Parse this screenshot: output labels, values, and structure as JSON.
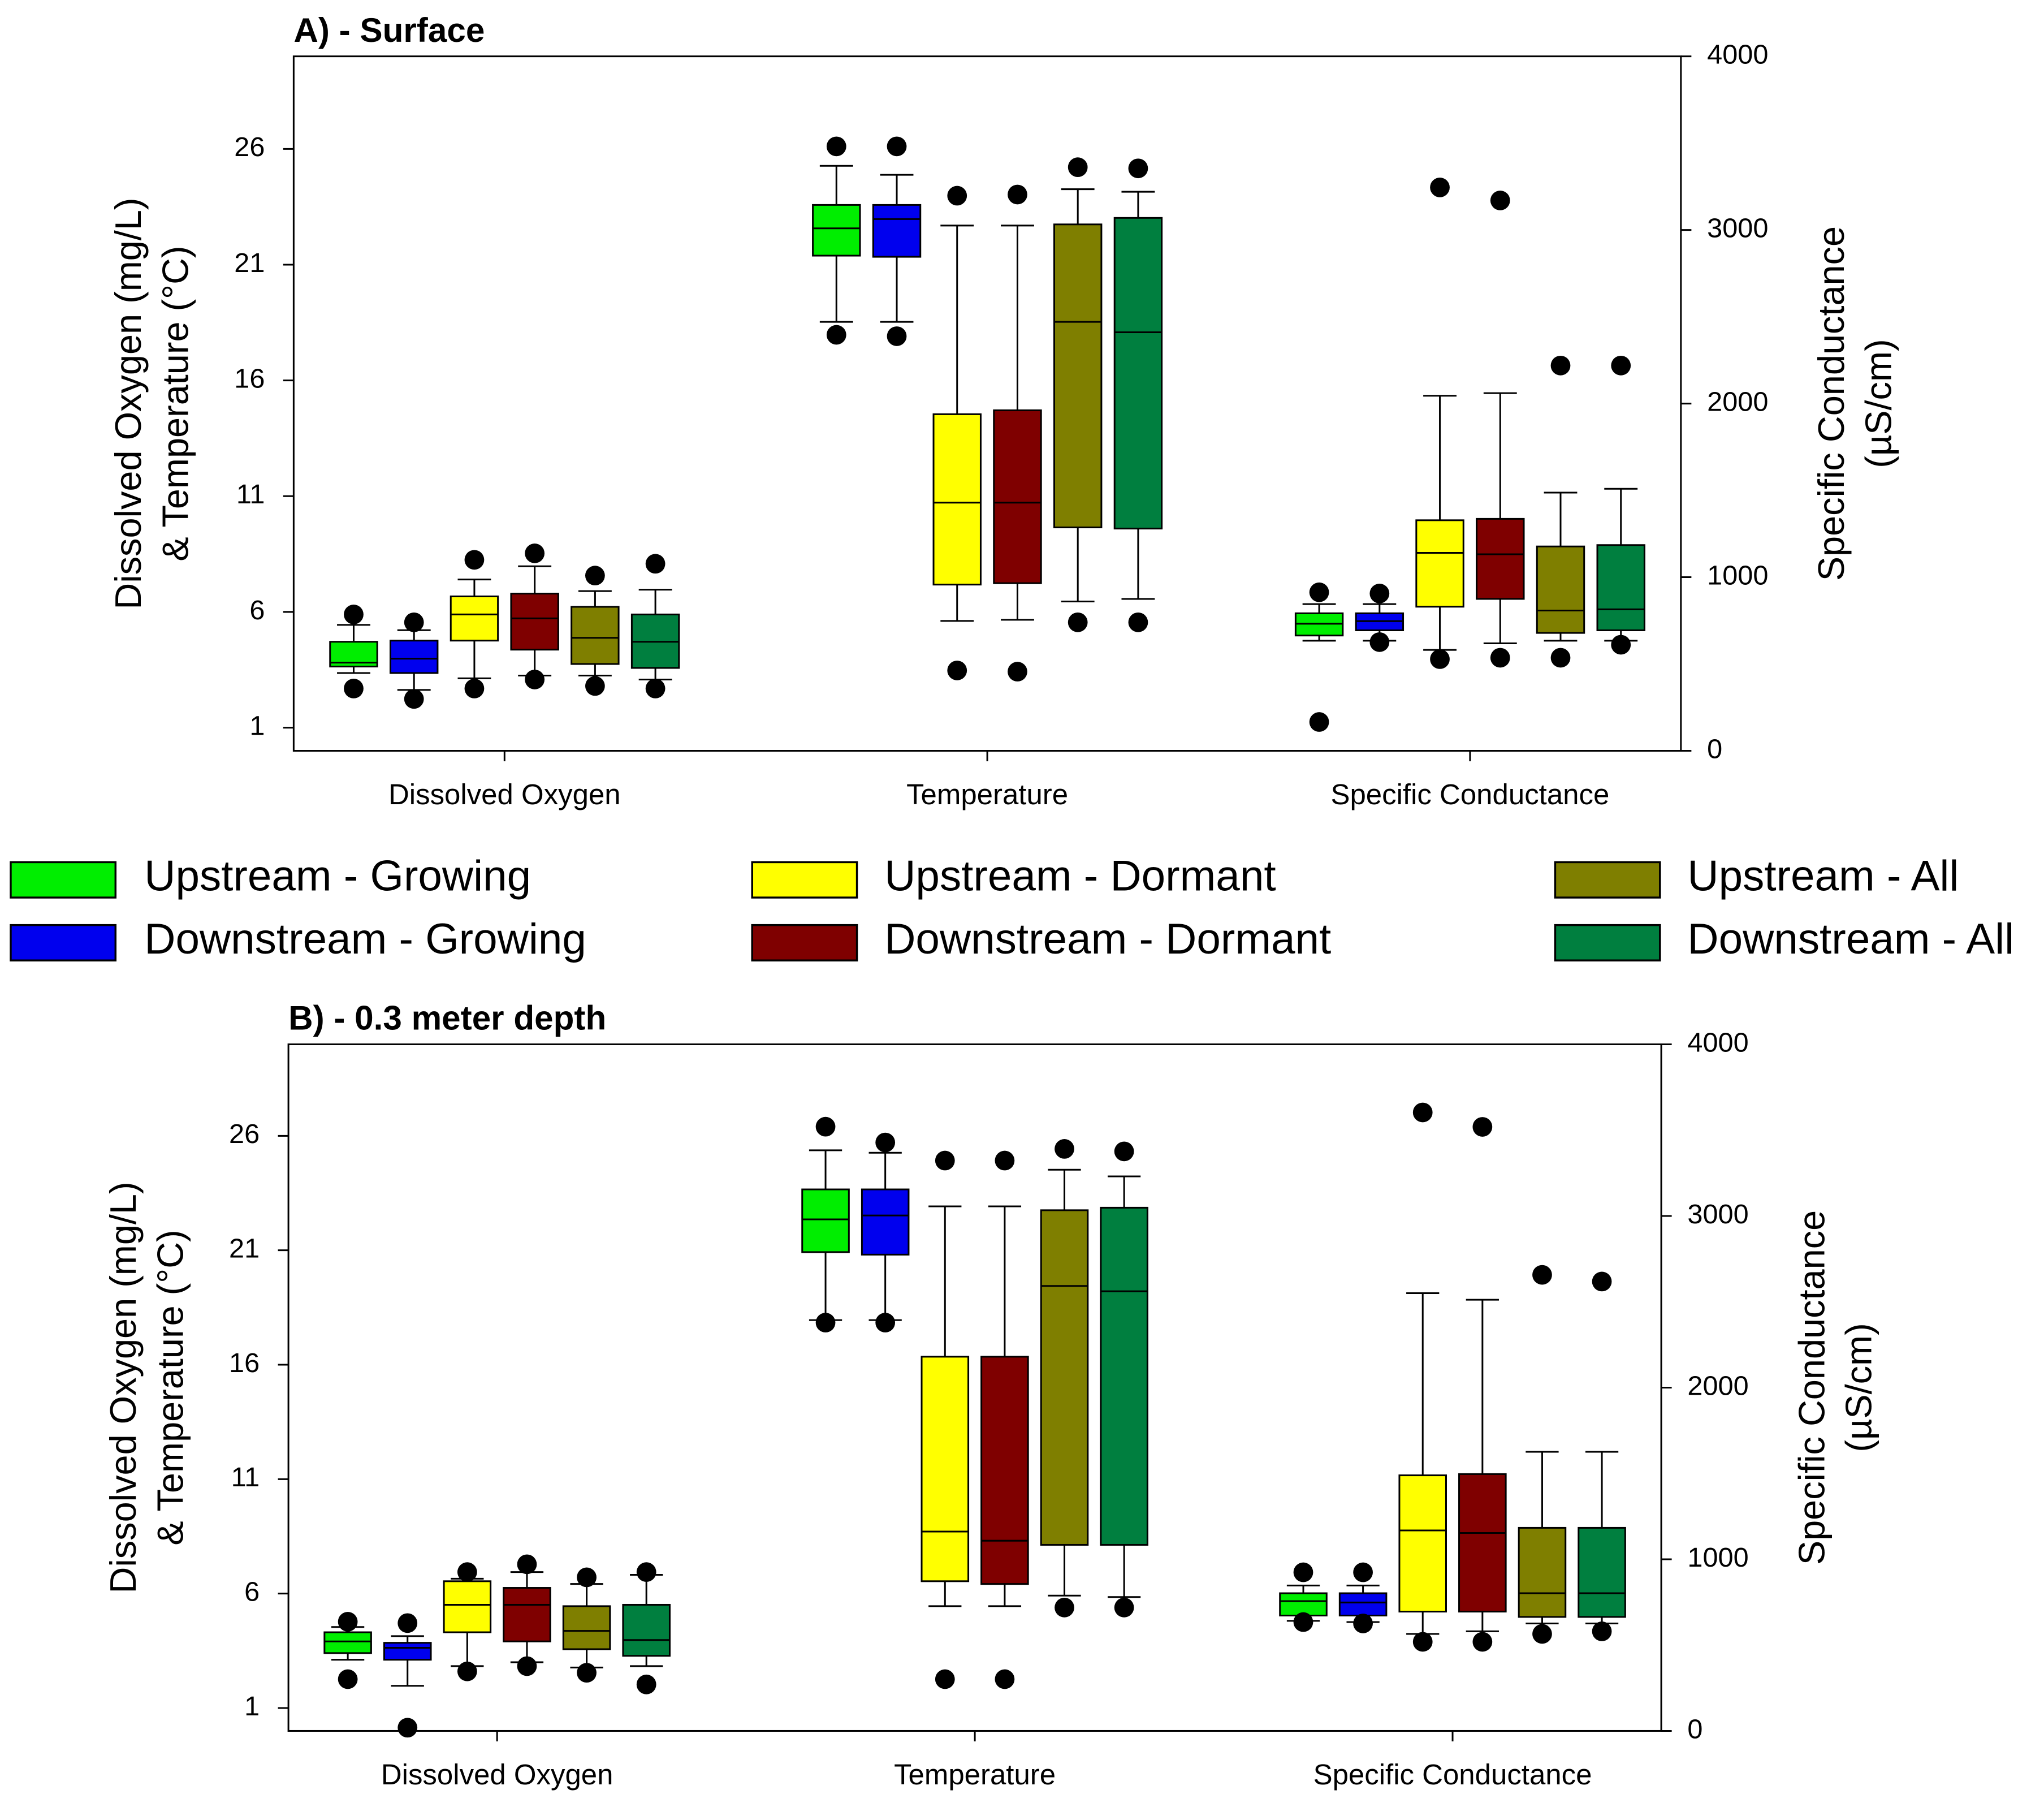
{
  "chart_data": [
    {
      "type": "box",
      "title": "A) - Surface",
      "ylabel": [
        "Dissolved Oxygen (mg/L)",
        "& Temperature (°C)"
      ],
      "y2label": [
        "Specific Conductance",
        "(µS/cm)"
      ],
      "categories": [
        "Dissolved Oxygen",
        "Temperature",
        "Specific Conductance"
      ],
      "category_axes": [
        "y",
        "y",
        "y2"
      ],
      "ylim": [
        0,
        30
      ],
      "yticks": [
        1,
        6,
        11,
        16,
        21,
        26
      ],
      "y2lim": [
        0,
        4000
      ],
      "y2ticks": [
        0,
        1000,
        2000,
        3000,
        4000
      ],
      "series": [
        {
          "name": "Upstream - Growing",
          "color": "#00ee00",
          "values": [
            {
              "low": 3.36,
              "q1": 3.64,
              "median": 3.81,
              "q3": 4.71,
              "high": 5.44,
              "outliers": [
                2.69,
                5.89
              ]
            },
            {
              "low": 18.53,
              "q1": 21.39,
              "median": 22.57,
              "q3": 23.58,
              "high": 25.27,
              "outliers": [
                17.97,
                26.11
              ]
            },
            {
              "low": 634,
              "q1": 664,
              "median": 732,
              "q3": 792,
              "high": 845,
              "outliers": [
                166,
                913
              ]
            }
          ]
        },
        {
          "name": "Downstream - Growing",
          "color": "#0000ee",
          "values": [
            {
              "low": 2.63,
              "q1": 3.36,
              "median": 3.98,
              "q3": 4.76,
              "high": 5.21,
              "outliers": [
                2.24,
                5.55
              ]
            },
            {
              "low": 18.53,
              "q1": 21.34,
              "median": 22.97,
              "q3": 23.58,
              "high": 24.88,
              "outliers": [
                17.91,
                26.11
              ]
            },
            {
              "low": 634,
              "q1": 694,
              "median": 747,
              "q3": 792,
              "high": 845,
              "outliers": [
                626,
                906
              ]
            }
          ]
        },
        {
          "name": "Upstream - Dormant",
          "color": "#ffff00",
          "values": [
            {
              "low": 3.13,
              "q1": 4.76,
              "median": 5.89,
              "q3": 6.67,
              "high": 7.4,
              "outliers": [
                2.69,
                8.25
              ]
            },
            {
              "low": 5.61,
              "q1": 7.18,
              "median": 10.72,
              "q3": 14.54,
              "high": 22.69,
              "outliers": [
                3.47,
                23.98
              ]
            },
            {
              "low": 581,
              "q1": 830,
              "median": 1140,
              "q3": 1328,
              "high": 2045,
              "outliers": [
                528,
                3245
              ]
            }
          ]
        },
        {
          "name": "Downstream - Dormant",
          "color": "#7f0000",
          "values": [
            {
              "low": 3.25,
              "q1": 4.37,
              "median": 5.72,
              "q3": 6.79,
              "high": 7.97,
              "outliers": [
                3.08,
                8.53
              ]
            },
            {
              "low": 5.66,
              "q1": 7.24,
              "median": 10.72,
              "q3": 14.71,
              "high": 22.69,
              "outliers": [
                3.42,
                24.03
              ]
            },
            {
              "low": 619,
              "q1": 875,
              "median": 1132,
              "q3": 1336,
              "high": 2060,
              "outliers": [
                536,
                3170
              ]
            }
          ]
        },
        {
          "name": "Upstream - All",
          "color": "#7f7f00",
          "values": [
            {
              "low": 3.25,
              "q1": 3.75,
              "median": 4.88,
              "q3": 6.22,
              "high": 6.9,
              "outliers": [
                2.8,
                7.57
              ]
            },
            {
              "low": 6.45,
              "q1": 9.65,
              "median": 18.53,
              "q3": 22.74,
              "high": 24.26,
              "outliers": [
                5.55,
                25.21
              ]
            },
            {
              "low": 634,
              "q1": 679,
              "median": 808,
              "q3": 1177,
              "high": 1487,
              "outliers": [
                536,
                2219
              ]
            }
          ]
        },
        {
          "name": "Downstream - All",
          "color": "#007f3f",
          "values": [
            {
              "low": 3.08,
              "q1": 3.58,
              "median": 4.71,
              "q3": 5.89,
              "high": 6.96,
              "outliers": [
                2.69,
                8.08
              ]
            },
            {
              "low": 6.56,
              "q1": 9.6,
              "median": 18.08,
              "q3": 23.02,
              "high": 24.15,
              "outliers": [
                5.55,
                25.16
              ]
            },
            {
              "low": 634,
              "q1": 694,
              "median": 815,
              "q3": 1185,
              "high": 1509,
              "outliers": [
                611,
                2219
              ]
            }
          ]
        }
      ]
    },
    {
      "type": "box",
      "title": "B) - 0.3 meter depth",
      "ylabel": [
        "Dissolved Oxygen (mg/L)",
        "& Temperature (°C)"
      ],
      "y2label": [
        "Specific Conductance",
        "(µS/cm)"
      ],
      "categories": [
        "Dissolved Oxygen",
        "Temperature",
        "Specific Conductance"
      ],
      "category_axes": [
        "y",
        "y",
        "y2"
      ],
      "ylim": [
        0,
        30
      ],
      "yticks": [
        1,
        6,
        11,
        16,
        21,
        26
      ],
      "y2lim": [
        0,
        4000
      ],
      "y2ticks": [
        0,
        1000,
        2000,
        3000,
        4000
      ],
      "series": [
        {
          "color": "#00ee00",
          "values": [
            {
              "low": 3.11,
              "q1": 3.4,
              "median": 3.91,
              "q3": 4.31,
              "high": 4.54,
              "outliers": [
                2.26,
                4.77
              ]
            },
            {
              "low": 17.95,
              "q1": 20.92,
              "median": 22.35,
              "q3": 23.66,
              "high": 25.37,
              "outliers": [
                17.84,
                26.4
              ]
            },
            {
              "low": 641,
              "q1": 672,
              "median": 756,
              "q3": 802,
              "high": 847,
              "outliers": [
                634,
                924
              ]
            }
          ]
        },
        {
          "color": "#0000ee",
          "values": [
            {
              "low": 1.97,
              "q1": 3.11,
              "median": 3.63,
              "q3": 3.85,
              "high": 4.14,
              "outliers": [
                0.14,
                4.71
              ]
            },
            {
              "low": 17.95,
              "q1": 20.81,
              "median": 22.52,
              "q3": 23.66,
              "high": 25.26,
              "outliers": [
                17.84,
                25.71
              ]
            },
            {
              "low": 634,
              "q1": 672,
              "median": 748,
              "q3": 802,
              "high": 847,
              "outliers": [
                626,
                924
              ]
            }
          ]
        },
        {
          "color": "#ffff00",
          "values": [
            {
              "low": 2.83,
              "q1": 4.31,
              "median": 5.51,
              "q3": 6.54,
              "high": 6.65,
              "outliers": [
                2.6,
                6.94
              ]
            },
            {
              "low": 5.45,
              "q1": 6.54,
              "median": 8.71,
              "q3": 16.35,
              "high": 22.92,
              "outliers": [
                2.26,
                24.92
              ]
            },
            {
              "low": 565,
              "q1": 695,
              "median": 1168,
              "q3": 1489,
              "high": 2550,
              "outliers": [
                519,
                3603
              ]
            }
          ]
        },
        {
          "color": "#7f0000",
          "values": [
            {
              "low": 3.0,
              "q1": 3.91,
              "median": 5.51,
              "q3": 6.25,
              "high": 6.94,
              "outliers": [
                2.83,
                7.28
              ]
            },
            {
              "low": 5.45,
              "q1": 6.42,
              "median": 8.31,
              "q3": 16.35,
              "high": 22.92,
              "outliers": [
                2.26,
                24.92
              ]
            },
            {
              "low": 580,
              "q1": 695,
              "median": 1153,
              "q3": 1496,
              "high": 2512,
              "outliers": [
                519,
                3519
              ]
            }
          ]
        },
        {
          "color": "#7f7f00",
          "values": [
            {
              "low": 2.77,
              "q1": 3.57,
              "median": 4.37,
              "q3": 5.45,
              "high": 6.42,
              "outliers": [
                2.54,
                6.71
              ]
            },
            {
              "low": 5.91,
              "q1": 8.13,
              "median": 19.44,
              "q3": 22.75,
              "high": 24.52,
              "outliers": [
                5.39,
                25.43
              ]
            },
            {
              "low": 626,
              "q1": 664,
              "median": 802,
              "q3": 1183,
              "high": 1626,
              "outliers": [
                565,
                2657
              ]
            }
          ]
        },
        {
          "color": "#007f3f",
          "values": [
            {
              "low": 2.83,
              "q1": 3.28,
              "median": 3.97,
              "q3": 5.51,
              "high": 6.82,
              "outliers": [
                2.03,
                6.94
              ]
            },
            {
              "low": 5.85,
              "q1": 8.13,
              "median": 19.21,
              "q3": 22.86,
              "high": 24.23,
              "outliers": [
                5.39,
                25.32
              ]
            },
            {
              "low": 626,
              "q1": 664,
              "median": 802,
              "q3": 1183,
              "high": 1626,
              "outliers": [
                580,
                2618
              ]
            }
          ]
        }
      ]
    }
  ]
}
